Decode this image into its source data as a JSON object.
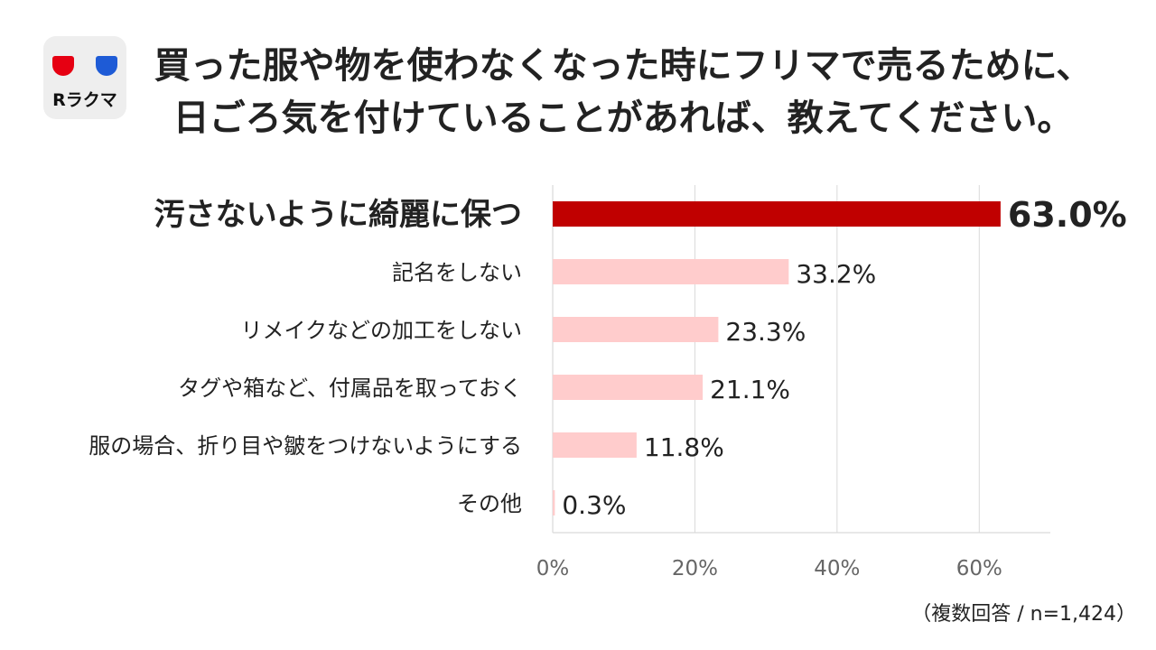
{
  "logo": {
    "brand_text": "Rラクマ"
  },
  "title": {
    "line1": "買った服や物を使わなくなった時にフリマで売るために、",
    "line2": "日ごろ気を付けていることがあれば、教えてください。"
  },
  "chart_data": {
    "type": "bar",
    "orientation": "horizontal",
    "categories": [
      "汚さないように綺麗に保つ",
      "記名をしない",
      "リメイクなどの加工をしない",
      "タグや箱など、付属品を取っておく",
      "服の場合、折り目や皺をつけないようにする",
      "その他"
    ],
    "values": [
      63.0,
      33.2,
      23.3,
      21.1,
      11.8,
      0.3
    ],
    "value_labels": [
      "63.0%",
      "33.2%",
      "23.3%",
      "21.1%",
      "11.8%",
      "0.3%"
    ],
    "xticks": [
      "0%",
      "20%",
      "40%",
      "60%"
    ],
    "xtick_values": [
      0,
      20,
      40,
      60
    ],
    "xlim": [
      0,
      70
    ],
    "grid": true,
    "highlight_index": 0,
    "colors": {
      "highlight": "#c00000",
      "normal": "#ffcccc",
      "grid": "#d9d9d9"
    }
  },
  "note": "（複数回答 / n=1,424）"
}
